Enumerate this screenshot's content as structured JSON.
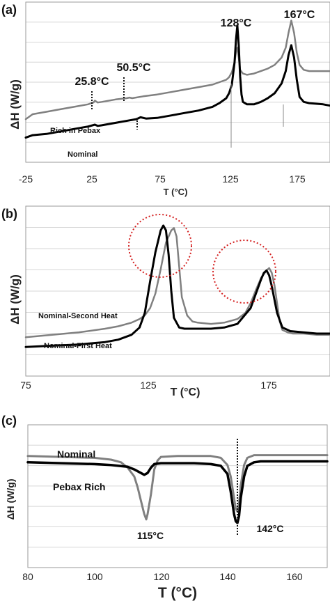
{
  "chart_data": [
    {
      "panel_label": "(a)",
      "type": "line",
      "xlabel": "T (°C)",
      "ylabel": "ΔH (W/g)",
      "xlim": [
        -25,
        195
      ],
      "x_ticks": [
        "-25",
        "25",
        "75",
        "125",
        "175"
      ],
      "grid": true,
      "series": [
        {
          "name": "Rich in Pebax",
          "color": "#808080",
          "x": [
            -25,
            -20,
            -10,
            0,
            10,
            20,
            24,
            25,
            27,
            30,
            40,
            48,
            50,
            52,
            60,
            70,
            80,
            90,
            100,
            110,
            115,
            120,
            122,
            124,
            126,
            127,
            128,
            129,
            130,
            132,
            135,
            140,
            145,
            150,
            155,
            160,
            163,
            165,
            167,
            169,
            171,
            173,
            176,
            180,
            190,
            195
          ],
          "y": [
            0.1,
            0.14,
            0.16,
            0.18,
            0.2,
            0.22,
            0.235,
            0.25,
            0.235,
            0.24,
            0.26,
            0.27,
            0.275,
            0.27,
            0.285,
            0.3,
            0.32,
            0.34,
            0.36,
            0.38,
            0.4,
            0.42,
            0.44,
            0.48,
            0.56,
            0.64,
            0.68,
            0.6,
            0.5,
            0.47,
            0.46,
            0.47,
            0.49,
            0.51,
            0.54,
            0.6,
            0.68,
            0.8,
            0.9,
            0.8,
            0.64,
            0.54,
            0.5,
            0.49,
            0.49,
            0.49
          ]
        },
        {
          "name": "Nominal",
          "color": "#000000",
          "x": [
            -25,
            -20,
            -10,
            0,
            10,
            20,
            25,
            27,
            30,
            40,
            50,
            55,
            58,
            62,
            70,
            80,
            90,
            100,
            110,
            115,
            120,
            122,
            124,
            126,
            127,
            128,
            129,
            130,
            131,
            132,
            135,
            140,
            145,
            150,
            155,
            160,
            163,
            165,
            167,
            169,
            171,
            173,
            176,
            180,
            190,
            195
          ],
          "y": [
            -0.05,
            -0.03,
            -0.02,
            0.0,
            0.02,
            0.04,
            0.055,
            0.045,
            0.05,
            0.07,
            0.09,
            0.1,
            0.115,
            0.105,
            0.11,
            0.13,
            0.15,
            0.17,
            0.2,
            0.23,
            0.27,
            0.31,
            0.38,
            0.56,
            0.74,
            0.86,
            0.7,
            0.45,
            0.3,
            0.24,
            0.22,
            0.22,
            0.24,
            0.27,
            0.31,
            0.39,
            0.49,
            0.62,
            0.7,
            0.6,
            0.42,
            0.28,
            0.24,
            0.23,
            0.22,
            0.21
          ]
        }
      ],
      "annotations": [
        "25.8°C",
        "50.5°C",
        "128°C",
        "167°C"
      ],
      "series_labels": [
        "Rich in Pebax",
        "Nominal"
      ]
    },
    {
      "panel_label": "(b)",
      "type": "line",
      "xlabel": "T (°C)",
      "ylabel": "ΔH (W/g)",
      "xlim": [
        75,
        190
      ],
      "x_ticks": [
        "75",
        "125",
        "175"
      ],
      "grid": true,
      "series": [
        {
          "name": "Nominal-Second  Heat",
          "color": "#808080",
          "x": [
            75,
            85,
            95,
            105,
            110,
            115,
            118,
            120,
            122,
            124,
            126,
            128,
            130,
            131,
            132,
            133,
            134,
            136,
            138,
            140,
            145,
            150,
            155,
            158,
            160,
            162,
            164,
            166,
            167,
            168,
            169,
            170,
            171,
            172,
            174,
            176,
            180,
            185,
            190
          ],
          "y": [
            0.02,
            0.04,
            0.06,
            0.09,
            0.11,
            0.14,
            0.17,
            0.2,
            0.26,
            0.38,
            0.58,
            0.8,
            0.9,
            0.92,
            0.85,
            0.6,
            0.35,
            0.2,
            0.15,
            0.14,
            0.13,
            0.14,
            0.17,
            0.22,
            0.3,
            0.41,
            0.51,
            0.57,
            0.59,
            0.55,
            0.45,
            0.3,
            0.15,
            0.08,
            0.06,
            0.05,
            0.05,
            0.04,
            0.04
          ]
        },
        {
          "name": "Nominal-First Heat",
          "color": "#000000",
          "x": [
            75,
            85,
            95,
            105,
            110,
            115,
            118,
            120,
            122,
            124,
            126,
            127,
            128,
            129,
            130,
            131,
            133,
            135,
            140,
            145,
            150,
            155,
            160,
            162,
            164,
            165,
            166,
            167,
            168,
            170,
            172,
            175,
            180,
            185,
            190
          ],
          "y": [
            -0.06,
            -0.05,
            -0.04,
            -0.02,
            0.0,
            0.04,
            0.1,
            0.22,
            0.48,
            0.72,
            0.9,
            0.94,
            0.9,
            0.7,
            0.4,
            0.18,
            0.1,
            0.09,
            0.09,
            0.09,
            0.1,
            0.13,
            0.26,
            0.38,
            0.5,
            0.55,
            0.57,
            0.53,
            0.44,
            0.22,
            0.1,
            0.07,
            0.06,
            0.05,
            0.05
          ]
        }
      ],
      "series_labels": [
        "Nominal-Second  Heat",
        "Nominal-First Heat"
      ]
    },
    {
      "panel_label": "(c)",
      "type": "line",
      "xlabel": "T (°C)",
      "ylabel": "ΔH (W/g)",
      "xlim": [
        80,
        170
      ],
      "x_ticks": [
        "80",
        "100",
        "120",
        "140",
        "160"
      ],
      "grid": true,
      "series": [
        {
          "name": "Nominal",
          "color": "#808080",
          "x": [
            80,
            90,
            100,
            105,
            108,
            110,
            112,
            113,
            114,
            115,
            115.6,
            116,
            117,
            118,
            119,
            120,
            125,
            130,
            135,
            138,
            140,
            141,
            142,
            142.5,
            143,
            143.5,
            144,
            145,
            146,
            148,
            150,
            160,
            170
          ],
          "y": [
            0.95,
            0.94,
            0.93,
            0.91,
            0.88,
            0.82,
            0.72,
            0.6,
            0.45,
            0.3,
            0.24,
            0.3,
            0.52,
            0.8,
            0.9,
            0.94,
            0.95,
            0.95,
            0.95,
            0.93,
            0.85,
            0.72,
            0.48,
            0.36,
            0.33,
            0.42,
            0.62,
            0.85,
            0.93,
            0.96,
            0.96,
            0.96,
            0.96
          ]
        },
        {
          "name": "Pebax Rich",
          "color": "#000000",
          "x": [
            80,
            90,
            100,
            105,
            110,
            112,
            114,
            115,
            116,
            117,
            118,
            120,
            125,
            130,
            135,
            138,
            140,
            141,
            142,
            142.5,
            143,
            143.5,
            144,
            145,
            146,
            148,
            150,
            160,
            170
          ],
          "y": [
            0.88,
            0.87,
            0.86,
            0.85,
            0.83,
            0.8,
            0.76,
            0.74,
            0.76,
            0.82,
            0.86,
            0.87,
            0.87,
            0.87,
            0.86,
            0.84,
            0.75,
            0.55,
            0.3,
            0.22,
            0.2,
            0.28,
            0.48,
            0.72,
            0.84,
            0.88,
            0.89,
            0.89,
            0.89
          ]
        }
      ],
      "annotations": [
        "115°C",
        "142°C"
      ],
      "series_labels": [
        "Nominal",
        "Pebax Rich"
      ]
    }
  ]
}
